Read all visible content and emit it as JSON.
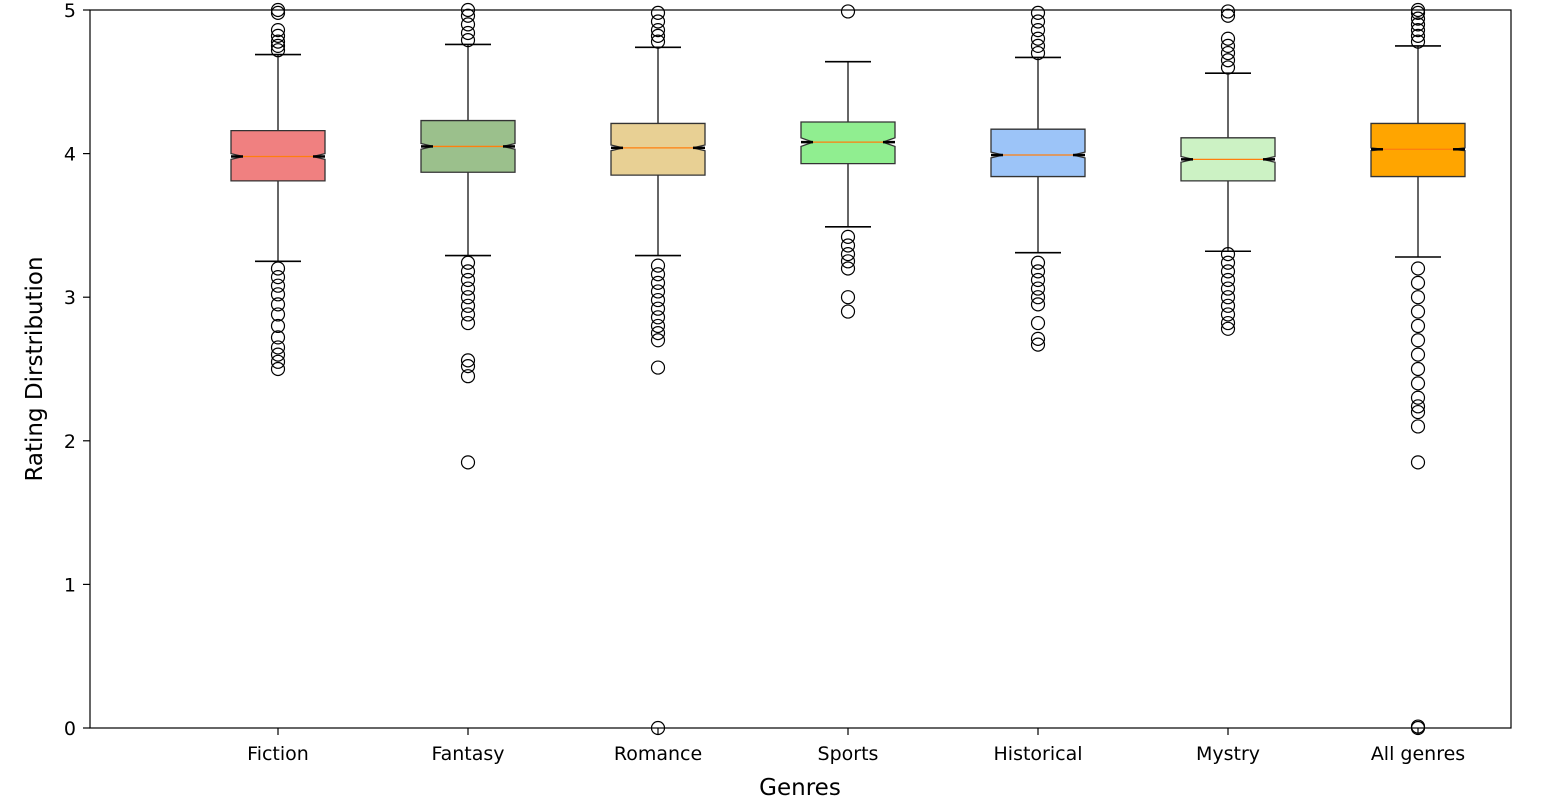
{
  "chart_data": {
    "type": "box",
    "xlabel": "Genres",
    "ylabel": "Rating Dirstribution",
    "ylim": [
      0,
      5
    ],
    "yticks": [
      "0",
      "1",
      "2",
      "3",
      "4",
      "5"
    ],
    "categories": [
      "Fiction",
      "Fantasy",
      "Romance",
      "Sports",
      "Historical",
      "Mystry",
      "All genres"
    ],
    "notched": true,
    "grid": false,
    "median_color": "#ff7f0e",
    "boxes": [
      {
        "category": "Fiction",
        "color": "#f08080",
        "whisker_low": 3.25,
        "q1": 3.81,
        "median": 3.98,
        "q3": 4.16,
        "whisker_high": 4.69,
        "notch": [
          3.96,
          4.0
        ],
        "outliers": [
          2.5,
          2.55,
          2.6,
          2.65,
          2.72,
          2.8,
          2.88,
          2.95,
          3.02,
          3.08,
          3.14,
          3.2,
          4.72,
          4.75,
          4.78,
          4.82,
          4.86,
          4.98,
          5.0
        ]
      },
      {
        "category": "Fantasy",
        "color": "#9bc08c",
        "whisker_low": 3.29,
        "q1": 3.87,
        "median": 4.05,
        "q3": 4.23,
        "whisker_high": 4.76,
        "notch": [
          4.03,
          4.07
        ],
        "outliers": [
          1.85,
          2.45,
          2.52,
          2.56,
          2.82,
          2.88,
          2.94,
          3.0,
          3.06,
          3.12,
          3.18,
          3.24,
          4.79,
          4.84,
          4.9,
          4.96,
          5.0
        ]
      },
      {
        "category": "Romance",
        "color": "#e8d094",
        "whisker_low": 3.29,
        "q1": 3.85,
        "median": 4.04,
        "q3": 4.21,
        "whisker_high": 4.74,
        "notch": [
          4.02,
          4.06
        ],
        "outliers": [
          0.0,
          2.51,
          2.7,
          2.75,
          2.8,
          2.86,
          2.92,
          2.98,
          3.04,
          3.1,
          3.16,
          3.22,
          4.78,
          4.82,
          4.86,
          4.92,
          4.98
        ]
      },
      {
        "category": "Sports",
        "color": "#90ee90",
        "whisker_low": 3.49,
        "q1": 3.93,
        "median": 4.08,
        "q3": 4.22,
        "whisker_high": 4.64,
        "notch": [
          4.05,
          4.11
        ],
        "outliers": [
          2.9,
          3.0,
          3.2,
          3.25,
          3.3,
          3.36,
          3.42,
          4.99
        ]
      },
      {
        "category": "Historical",
        "color": "#9cc4f8",
        "whisker_low": 3.31,
        "q1": 3.84,
        "median": 3.99,
        "q3": 4.17,
        "whisker_high": 4.67,
        "notch": [
          3.97,
          4.01
        ],
        "outliers": [
          2.67,
          2.71,
          2.82,
          2.95,
          3.0,
          3.06,
          3.12,
          3.18,
          3.24,
          4.7,
          4.75,
          4.8,
          4.86,
          4.92,
          4.98
        ]
      },
      {
        "category": "Mystry",
        "color": "#ccf2c4",
        "whisker_low": 3.32,
        "q1": 3.81,
        "median": 3.96,
        "q3": 4.11,
        "whisker_high": 4.56,
        "notch": [
          3.94,
          3.98
        ],
        "outliers": [
          2.78,
          2.82,
          2.88,
          2.94,
          3.0,
          3.06,
          3.12,
          3.18,
          3.24,
          3.3,
          4.6,
          4.65,
          4.7,
          4.75,
          4.8,
          4.96,
          4.99
        ]
      },
      {
        "category": "All genres",
        "color": "#ffa500",
        "whisker_low": 3.28,
        "q1": 3.84,
        "median": 4.03,
        "q3": 4.21,
        "whisker_high": 4.75,
        "notch": [
          4.02,
          4.04
        ],
        "outliers": [
          0.0,
          0.01,
          1.85,
          2.1,
          2.2,
          2.24,
          2.3,
          2.4,
          2.5,
          2.6,
          2.7,
          2.8,
          2.9,
          3.0,
          3.1,
          3.2,
          4.78,
          4.82,
          4.86,
          4.9,
          4.94,
          4.98,
          5.0
        ]
      }
    ]
  }
}
